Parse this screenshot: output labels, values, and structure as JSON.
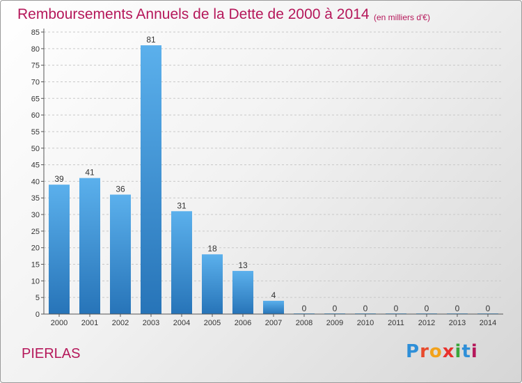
{
  "header": {
    "title": "Remboursements Annuels de la Dette de 2000 à 2014",
    "subtitle": "(en milliers d'€)"
  },
  "footer": {
    "commune": "PIERLAS",
    "logo": "Proxiti"
  },
  "colors": {
    "bar_top": "#5bb0ec",
    "bar_bottom": "#2774b8",
    "title": "#b5175a",
    "grid": "#c8c8c8"
  },
  "chart_data": {
    "type": "bar",
    "title": "Remboursements Annuels de la Dette de 2000 à 2014",
    "subtitle": "(en milliers d'€)",
    "xlabel": "",
    "ylabel": "",
    "categories": [
      "2000",
      "2001",
      "2002",
      "2003",
      "2004",
      "2005",
      "2006",
      "2007",
      "2008",
      "2009",
      "2010",
      "2011",
      "2012",
      "2013",
      "2014"
    ],
    "values": [
      39,
      41,
      36,
      81,
      31,
      18,
      13,
      4,
      0,
      0,
      0,
      0,
      0,
      0,
      0
    ],
    "ylim": [
      0,
      85
    ],
    "yticks": [
      0,
      5,
      10,
      15,
      20,
      25,
      30,
      35,
      40,
      45,
      50,
      55,
      60,
      65,
      70,
      75,
      80,
      85
    ],
    "grid": true,
    "legend": "none"
  }
}
